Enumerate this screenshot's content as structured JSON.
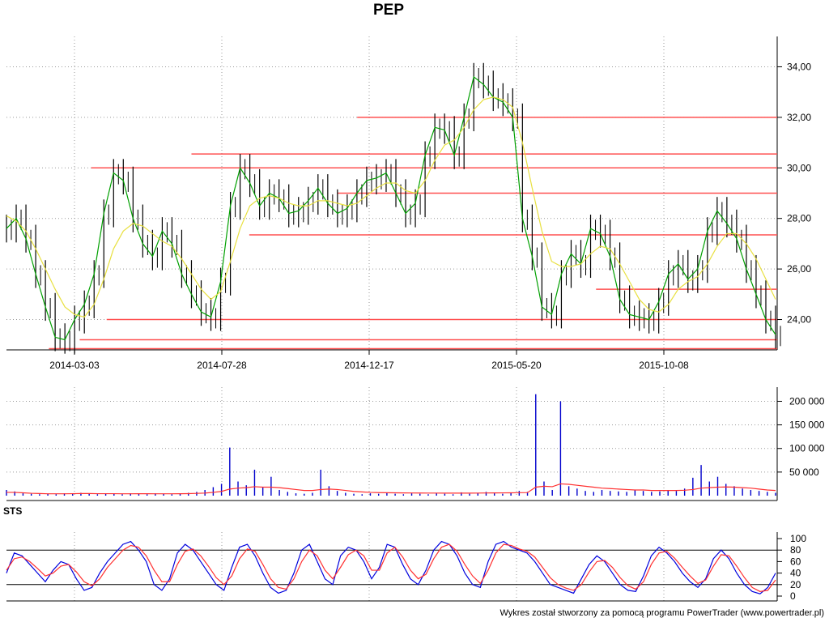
{
  "title": "PEP",
  "sts_label": "STS",
  "footer": "Wykres został stworzony za pomocą programu PowerTrader (www.powertrader.pl)",
  "colors": {
    "candle": "#000000",
    "ma_short": "#00a000",
    "ma_long": "#e8e040",
    "support_lines": "#ff5050",
    "volume": "#0000cc",
    "volume_avg": "#ff3030",
    "sts_k": "#0000dd",
    "sts_d": "#ff3030",
    "grid": "#999999"
  },
  "chart_data": [
    {
      "type": "line",
      "name": "price",
      "x_ticks": [
        "2014-03-03",
        "2014-07-28",
        "2014-12-17",
        "2015-05-20",
        "2015-10-08"
      ],
      "y_ticks": [
        "24,00",
        "26,00",
        "28,00",
        "30,00",
        "32,00",
        "34,00"
      ],
      "ylim": [
        22.8,
        35.2
      ],
      "series": [
        {
          "values": [
            27.6,
            28.0,
            27.2,
            25.8,
            24.5,
            23.3,
            23.2,
            24.0,
            24.6,
            25.8,
            28.2,
            29.8,
            29.5,
            28.0,
            27.0,
            26.5,
            27.5,
            27.0,
            25.8,
            25.0,
            24.3,
            24.1,
            25.5,
            28.5,
            30.0,
            29.4,
            28.5,
            29.0,
            28.8,
            28.2,
            28.3,
            28.7,
            29.2,
            28.6,
            28.2,
            28.4,
            29.0,
            29.5,
            29.6,
            29.8,
            29.0,
            28.2,
            28.6,
            30.5,
            31.6,
            31.5,
            30.5,
            32.0,
            33.6,
            33.3,
            32.8,
            32.6,
            32.0,
            28.0,
            26.5,
            24.5,
            24.2,
            25.8,
            26.6,
            26.2,
            27.6,
            27.4,
            26.5,
            24.8,
            24.2,
            24.1,
            24.0,
            24.7,
            25.8,
            26.2,
            25.6,
            26.0,
            27.5,
            28.3,
            27.8,
            27.2,
            26.0,
            25.0,
            24.0,
            23.4
          ]
        },
        {
          "values": [
            28.1,
            27.9,
            27.5,
            26.8,
            26.0,
            25.2,
            24.5,
            24.2,
            24.1,
            24.6,
            25.6,
            26.8,
            27.5,
            27.8,
            27.7,
            27.4,
            27.1,
            26.9,
            26.4,
            25.8,
            25.2,
            24.8,
            25.1,
            26.3,
            27.6,
            28.5,
            28.8,
            28.9,
            28.8,
            28.6,
            28.5,
            28.5,
            28.7,
            28.7,
            28.6,
            28.5,
            28.6,
            28.9,
            29.2,
            29.4,
            29.4,
            29.1,
            29.0,
            29.5,
            30.3,
            30.9,
            31.1,
            31.6,
            32.3,
            32.7,
            32.8,
            32.7,
            32.4,
            31.0,
            29.2,
            27.5,
            26.3,
            26.1,
            26.1,
            26.2,
            26.6,
            26.9,
            26.8,
            26.2,
            25.5,
            24.8,
            24.4,
            24.3,
            24.6,
            25.2,
            25.5,
            25.7,
            26.2,
            26.9,
            27.4,
            27.4,
            27.0,
            26.4,
            25.6,
            24.8
          ]
        }
      ],
      "horizontal_levels": [
        {
          "y": 22.85,
          "x_start": 0.055
        },
        {
          "y": 23.2,
          "x_start": 0.095
        },
        {
          "y": 24.0,
          "x_start": 0.13
        },
        {
          "y": 25.2,
          "x_start": 0.765
        },
        {
          "y": 27.35,
          "x_start": 0.315
        },
        {
          "y": 29.0,
          "x_start": 0.43
        },
        {
          "y": 30.0,
          "x_start": 0.11
        },
        {
          "y": 30.55,
          "x_start": 0.24
        },
        {
          "y": 32.0,
          "x_start": 0.455
        }
      ]
    },
    {
      "type": "bar",
      "name": "volume",
      "y_ticks": [
        "50 000",
        "100 000",
        "150 000",
        "200 000"
      ],
      "ylim": [
        0,
        230000
      ],
      "values": [
        12000,
        9000,
        5000,
        4000,
        3000,
        4000,
        3000,
        5000,
        4000,
        6000,
        4000,
        3000,
        5000,
        4000,
        3000,
        5000,
        4000,
        3000,
        5000,
        4000,
        3000,
        5000,
        6000,
        8000,
        12000,
        18000,
        25000,
        102000,
        30000,
        22000,
        55000,
        18000,
        40000,
        12000,
        8000,
        5000,
        4000,
        6000,
        55000,
        20000,
        10000,
        6000,
        4000,
        3000,
        5000,
        4000,
        6000,
        4000,
        3000,
        5000,
        4000,
        3000,
        6000,
        4000,
        3000,
        7000,
        4000,
        6000,
        8000,
        5000,
        4000,
        6000,
        10000,
        8000,
        215000,
        30000,
        12000,
        200000,
        20000,
        15000,
        10000,
        8000,
        12000,
        10000,
        9000,
        8000,
        12000,
        10000,
        8000,
        9000,
        12000,
        10000,
        15000,
        38000,
        65000,
        30000,
        40000,
        25000,
        20000,
        15000,
        12000,
        10000,
        8000,
        6000
      ],
      "average": [
        7000,
        7000,
        6000,
        5000,
        4500,
        4000,
        4000,
        4000,
        4200,
        4500,
        4500,
        4200,
        4200,
        4200,
        4000,
        4000,
        4100,
        4100,
        4000,
        4000,
        4000,
        4100,
        4300,
        4800,
        5500,
        7000,
        9000,
        14000,
        16000,
        17000,
        19000,
        18000,
        18000,
        17000,
        15000,
        13000,
        11000,
        11000,
        13000,
        14000,
        13000,
        11000,
        9000,
        8000,
        7000,
        6500,
        6200,
        6000,
        5800,
        5700,
        5600,
        5500,
        5500,
        5400,
        5300,
        5400,
        5400,
        5500,
        5700,
        5800,
        5900,
        6000,
        6300,
        6500,
        18000,
        20000,
        19000,
        25000,
        24000,
        22000,
        20000,
        18000,
        16000,
        15000,
        14000,
        13000,
        12000,
        12000,
        11000,
        11000,
        11000,
        11000,
        11500,
        13000,
        16000,
        17000,
        18000,
        18500,
        18000,
        17000,
        16000,
        14000,
        12000,
        11000
      ]
    },
    {
      "type": "line",
      "name": "STS",
      "y_ticks": [
        "0",
        "20",
        "40",
        "60",
        "80",
        "100"
      ],
      "ylim": [
        0,
        100
      ],
      "reference_lines": [
        20,
        80
      ],
      "series": [
        {
          "values": [
            40,
            75,
            70,
            55,
            40,
            25,
            45,
            60,
            55,
            30,
            10,
            15,
            40,
            60,
            75,
            90,
            95,
            80,
            60,
            20,
            10,
            30,
            75,
            90,
            80,
            60,
            40,
            20,
            10,
            50,
            85,
            90,
            70,
            40,
            15,
            5,
            10,
            40,
            80,
            90,
            60,
            30,
            20,
            70,
            85,
            80,
            60,
            30,
            50,
            90,
            85,
            55,
            30,
            20,
            45,
            80,
            95,
            90,
            70,
            40,
            20,
            15,
            60,
            90,
            95,
            85,
            80,
            75,
            60,
            40,
            20,
            15,
            10,
            5,
            30,
            55,
            70,
            60,
            40,
            20,
            10,
            8,
            35,
            70,
            85,
            75,
            60,
            40,
            25,
            15,
            30,
            65,
            80,
            65,
            40,
            20,
            8,
            4,
            15,
            40
          ]
        },
        {
          "values": [
            45,
            65,
            68,
            60,
            48,
            35,
            40,
            52,
            55,
            42,
            25,
            18,
            30,
            50,
            65,
            80,
            88,
            85,
            70,
            45,
            25,
            25,
            55,
            78,
            82,
            70,
            52,
            32,
            20,
            35,
            65,
            82,
            78,
            55,
            30,
            15,
            12,
            30,
            60,
            80,
            70,
            45,
            30,
            50,
            72,
            80,
            70,
            45,
            45,
            75,
            85,
            68,
            45,
            30,
            38,
            65,
            85,
            90,
            78,
            55,
            35,
            22,
            45,
            75,
            90,
            88,
            82,
            78,
            68,
            50,
            32,
            20,
            14,
            10,
            20,
            42,
            60,
            62,
            50,
            32,
            18,
            12,
            25,
            55,
            75,
            78,
            66,
            50,
            35,
            22,
            28,
            52,
            72,
            70,
            52,
            32,
            15,
            8,
            10,
            28
          ]
        }
      ]
    }
  ]
}
